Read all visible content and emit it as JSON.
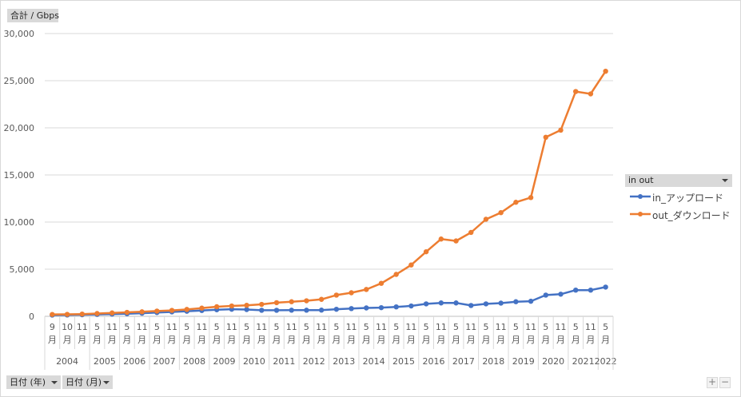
{
  "y_unit_label": "合計 / Gbps",
  "legend": {
    "title": "in out",
    "items": [
      {
        "label": "in_アップロード",
        "color": "#4472c4"
      },
      {
        "label": "out_ダウンロード",
        "color": "#ed7d31"
      }
    ]
  },
  "fields": {
    "year_button": "日付 (年)",
    "month_button": "日付 (月)"
  },
  "controls": {
    "zoom_in": "+",
    "zoom_out": "−"
  },
  "chart_data": {
    "type": "line",
    "title": "",
    "xlabel": "",
    "ylabel": "合計 / Gbps",
    "ylim": [
      0,
      30000
    ],
    "yticks": [
      "0",
      "5,000",
      "10,000",
      "15,000",
      "20,000",
      "25,000",
      "30,000"
    ],
    "grid": true,
    "legend_position": "right",
    "categories": [
      {
        "year": "2004",
        "month": "9"
      },
      {
        "year": "2004",
        "month": "10"
      },
      {
        "year": "2004",
        "month": "11"
      },
      {
        "year": "2005",
        "month": "5"
      },
      {
        "year": "2005",
        "month": "11"
      },
      {
        "year": "2006",
        "month": "5"
      },
      {
        "year": "2006",
        "month": "11"
      },
      {
        "year": "2007",
        "month": "5"
      },
      {
        "year": "2007",
        "month": "11"
      },
      {
        "year": "2008",
        "month": "5"
      },
      {
        "year": "2008",
        "month": "11"
      },
      {
        "year": "2009",
        "month": "5"
      },
      {
        "year": "2009",
        "month": "11"
      },
      {
        "year": "2010",
        "month": "5"
      },
      {
        "year": "2010",
        "month": "11"
      },
      {
        "year": "2011",
        "month": "5"
      },
      {
        "year": "2011",
        "month": "11"
      },
      {
        "year": "2012",
        "month": "5"
      },
      {
        "year": "2012",
        "month": "11"
      },
      {
        "year": "2013",
        "month": "5"
      },
      {
        "year": "2013",
        "month": "11"
      },
      {
        "year": "2014",
        "month": "5"
      },
      {
        "year": "2014",
        "month": "11"
      },
      {
        "year": "2015",
        "month": "5"
      },
      {
        "year": "2015",
        "month": "11"
      },
      {
        "year": "2016",
        "month": "5"
      },
      {
        "year": "2016",
        "month": "11"
      },
      {
        "year": "2017",
        "month": "5"
      },
      {
        "year": "2017",
        "month": "11"
      },
      {
        "year": "2018",
        "month": "5"
      },
      {
        "year": "2018",
        "month": "11"
      },
      {
        "year": "2019",
        "month": "5"
      },
      {
        "year": "2019",
        "month": "11"
      },
      {
        "year": "2020",
        "month": "5"
      },
      {
        "year": "2020",
        "month": "11"
      },
      {
        "year": "2021",
        "month": "5"
      },
      {
        "year": "2021",
        "month": "11"
      },
      {
        "year": "2022",
        "month": "5"
      }
    ],
    "month_suffix": "月",
    "series": [
      {
        "name": "in_アップロード",
        "color": "#4472c4",
        "values": [
          130,
          140,
          170,
          200,
          230,
          280,
          330,
          400,
          470,
          540,
          620,
          700,
          750,
          720,
          640,
          640,
          650,
          650,
          660,
          750,
          820,
          890,
          920,
          1000,
          1100,
          1320,
          1420,
          1420,
          1150,
          1320,
          1400,
          1550,
          1600,
          2250,
          2350,
          2780,
          2780,
          3100
        ]
      },
      {
        "name": "out_ダウンロード",
        "color": "#ed7d31",
        "values": [
          200,
          210,
          240,
          300,
          360,
          420,
          480,
          560,
          630,
          730,
          870,
          1020,
          1100,
          1170,
          1270,
          1450,
          1550,
          1650,
          1800,
          2250,
          2500,
          2850,
          3500,
          4450,
          5450,
          6850,
          8200,
          8000,
          8900,
          10300,
          11000,
          12100,
          12600,
          19000,
          19750,
          23850,
          23600,
          26000
        ]
      }
    ]
  }
}
